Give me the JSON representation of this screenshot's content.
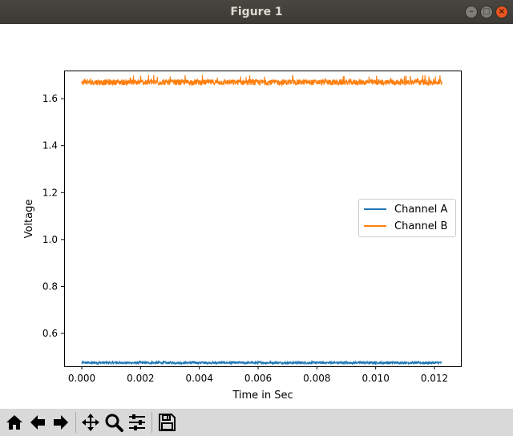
{
  "window": {
    "title": "Figure 1"
  },
  "window_controls": [
    "minimize-icon",
    "maximize-icon",
    "close-icon"
  ],
  "toolbar": {
    "buttons": [
      "home-icon",
      "back-icon",
      "forward-icon",
      "pan-icon",
      "zoom-icon",
      "configure-subplots-icon",
      "save-icon"
    ]
  },
  "colors": {
    "channel_a": "#1f77b4",
    "channel_b": "#ff7f0e",
    "titlebar": "#3e3d39",
    "toolbar": "#d9d9d9"
  },
  "chart_data": {
    "type": "line",
    "title": "",
    "xlabel": "Time in Sec",
    "ylabel": "Voltage",
    "xlim": [
      -0.0006,
      0.0129
    ],
    "ylim": [
      0.46,
      1.72
    ],
    "xticks": [
      "0.000",
      "0.002",
      "0.004",
      "0.006",
      "0.008",
      "0.010",
      "0.012"
    ],
    "yticks": [
      "0.6",
      "0.8",
      "1.0",
      "1.2",
      "1.4",
      "1.6"
    ],
    "x_range": [
      0.0,
      0.01225
    ],
    "legend_position": "center-right",
    "grid": false,
    "series": [
      {
        "name": "Channel A",
        "mean": 0.475,
        "noise": 0.005
      },
      {
        "name": "Channel B",
        "mean": 1.67,
        "noise": 0.012
      }
    ]
  }
}
